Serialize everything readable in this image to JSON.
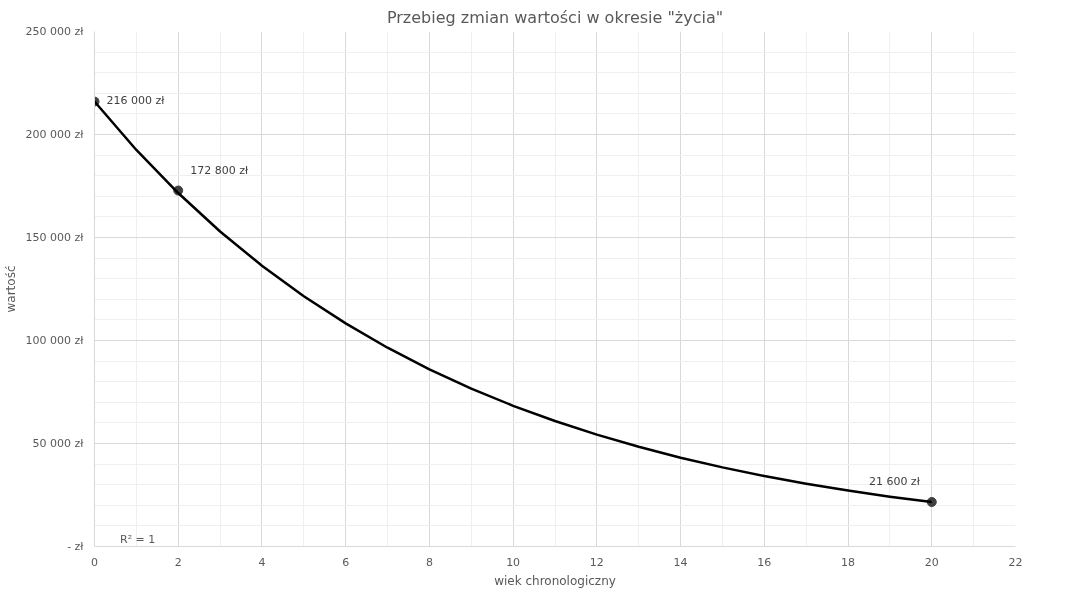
{
  "chart_data": {
    "type": "scatter",
    "title": "Przebieg zmian wartości w okresie \"życia\"",
    "xlabel": "wiek chronologiczny",
    "ylabel": "wartość",
    "xlim": [
      0,
      22
    ],
    "xticks": [
      0,
      2,
      4,
      6,
      8,
      10,
      12,
      14,
      16,
      18,
      20,
      22
    ],
    "ylim": [
      0,
      250000
    ],
    "yticks": [
      {
        "value": 0,
        "label": "- zł"
      },
      {
        "value": 50000,
        "label": "50 000 zł"
      },
      {
        "value": 100000,
        "label": "100 000 zł"
      },
      {
        "value": 150000,
        "label": "150 000 zł"
      },
      {
        "value": 200000,
        "label": "200 000 zł"
      },
      {
        "value": 250000,
        "label": "250 000 zł"
      }
    ],
    "grid": true,
    "series": [
      {
        "marker": "circle",
        "color": "#404040",
        "x": [
          0,
          2,
          20
        ],
        "values": [
          216000,
          172800,
          21600
        ],
        "value_labels": [
          "216 000 zł",
          "172 800 zł",
          "21 600 zł"
        ]
      },
      {
        "type": "line",
        "color": "#000000",
        "line_style": "solid",
        "x": [
          0,
          1,
          2,
          3,
          4,
          5,
          6,
          7,
          8,
          9,
          10,
          11,
          12,
          13,
          14,
          15,
          16,
          17,
          18,
          19,
          20
        ],
        "values": [
          216000,
          192500,
          171600,
          152900,
          136300,
          121500,
          108300,
          96500,
          86000,
          76600,
          68300,
          60900,
          54300,
          48400,
          43100,
          38400,
          34200,
          30500,
          27200,
          24200,
          21600
        ]
      }
    ],
    "annotations": [
      "R² = 1"
    ]
  }
}
